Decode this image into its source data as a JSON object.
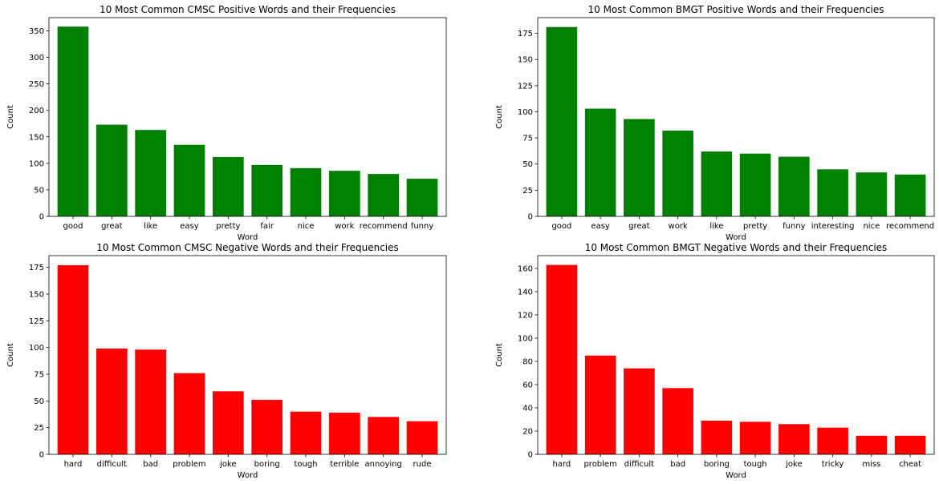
{
  "chart_data": [
    {
      "type": "bar",
      "title": "10 Most Common CMSC Positive Words and their Frequencies",
      "xlabel": "Word",
      "ylabel": "Count",
      "color": "#008000",
      "categories": [
        "good",
        "great",
        "like",
        "easy",
        "pretty",
        "fair",
        "nice",
        "work",
        "recommend",
        "funny"
      ],
      "values": [
        358,
        173,
        163,
        135,
        112,
        97,
        91,
        86,
        80,
        71
      ],
      "ylim": [
        0,
        375
      ],
      "yticks": [
        0,
        50,
        100,
        150,
        200,
        250,
        300,
        350
      ]
    },
    {
      "type": "bar",
      "title": "10 Most Common BMGT Positive Words and their Frequencies",
      "xlabel": "Word",
      "ylabel": "Count",
      "color": "#008000",
      "categories": [
        "good",
        "easy",
        "great",
        "work",
        "like",
        "pretty",
        "funny",
        "interesting",
        "nice",
        "recommend"
      ],
      "values": [
        181,
        103,
        93,
        82,
        62,
        60,
        57,
        45,
        42,
        40
      ],
      "ylim": [
        0,
        190
      ],
      "yticks": [
        0,
        25,
        50,
        75,
        100,
        125,
        150,
        175
      ]
    },
    {
      "type": "bar",
      "title": "10 Most Common CMSC Negative Words and their Frequencies",
      "xlabel": "Word",
      "ylabel": "Count",
      "color": "#ff0000",
      "categories": [
        "hard",
        "difficult",
        "bad",
        "problem",
        "joke",
        "boring",
        "tough",
        "terrible",
        "annoying",
        "rude"
      ],
      "values": [
        177,
        99,
        98,
        76,
        59,
        51,
        40,
        39,
        35,
        31
      ],
      "ylim": [
        0,
        186
      ],
      "yticks": [
        0,
        25,
        50,
        75,
        100,
        125,
        150,
        175
      ]
    },
    {
      "type": "bar",
      "title": "10 Most Common BMGT Negative Words and their Frequencies",
      "xlabel": "Word",
      "ylabel": "Count",
      "color": "#ff0000",
      "categories": [
        "hard",
        "problem",
        "difficult",
        "bad",
        "boring",
        "tough",
        "joke",
        "tricky",
        "miss",
        "cheat"
      ],
      "values": [
        163,
        85,
        74,
        57,
        29,
        28,
        26,
        23,
        16,
        16
      ],
      "ylim": [
        0,
        171
      ],
      "yticks": [
        0,
        20,
        40,
        60,
        80,
        100,
        120,
        140,
        160
      ]
    }
  ]
}
